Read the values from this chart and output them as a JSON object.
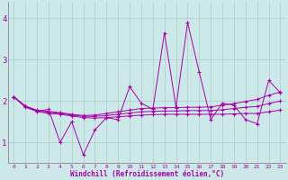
{
  "xlabel": "Windchill (Refroidissement éolien,°C)",
  "bg_color": "#cce8e8",
  "line_color": "#aa00aa",
  "grid_color": "#aacccc",
  "x_ticks": [
    0,
    1,
    2,
    3,
    4,
    5,
    6,
    7,
    8,
    9,
    10,
    11,
    12,
    13,
    14,
    15,
    16,
    17,
    18,
    19,
    20,
    21,
    22,
    23
  ],
  "y_ticks": [
    1,
    2,
    3,
    4
  ],
  "ylim": [
    0.5,
    4.4
  ],
  "xlim": [
    -0.5,
    23.5
  ],
  "series": [
    [
      2.1,
      1.85,
      1.75,
      1.8,
      1.0,
      1.5,
      0.7,
      1.3,
      1.6,
      1.55,
      2.35,
      1.95,
      1.8,
      3.65,
      1.85,
      3.9,
      2.7,
      1.55,
      1.95,
      1.9,
      1.55,
      1.45,
      2.5,
      2.2
    ],
    [
      2.1,
      1.88,
      1.78,
      1.75,
      1.72,
      1.68,
      1.65,
      1.66,
      1.7,
      1.74,
      1.78,
      1.82,
      1.83,
      1.84,
      1.84,
      1.85,
      1.85,
      1.86,
      1.9,
      1.94,
      1.99,
      2.04,
      2.14,
      2.22
    ],
    [
      2.1,
      1.88,
      1.75,
      1.7,
      1.68,
      1.64,
      1.6,
      1.59,
      1.6,
      1.62,
      1.64,
      1.66,
      1.67,
      1.68,
      1.68,
      1.68,
      1.68,
      1.68,
      1.68,
      1.69,
      1.7,
      1.7,
      1.74,
      1.78
    ],
    [
      2.1,
      1.87,
      1.76,
      1.73,
      1.7,
      1.66,
      1.63,
      1.63,
      1.65,
      1.68,
      1.71,
      1.74,
      1.75,
      1.76,
      1.76,
      1.77,
      1.77,
      1.77,
      1.79,
      1.82,
      1.85,
      1.87,
      1.94,
      2.0
    ]
  ]
}
